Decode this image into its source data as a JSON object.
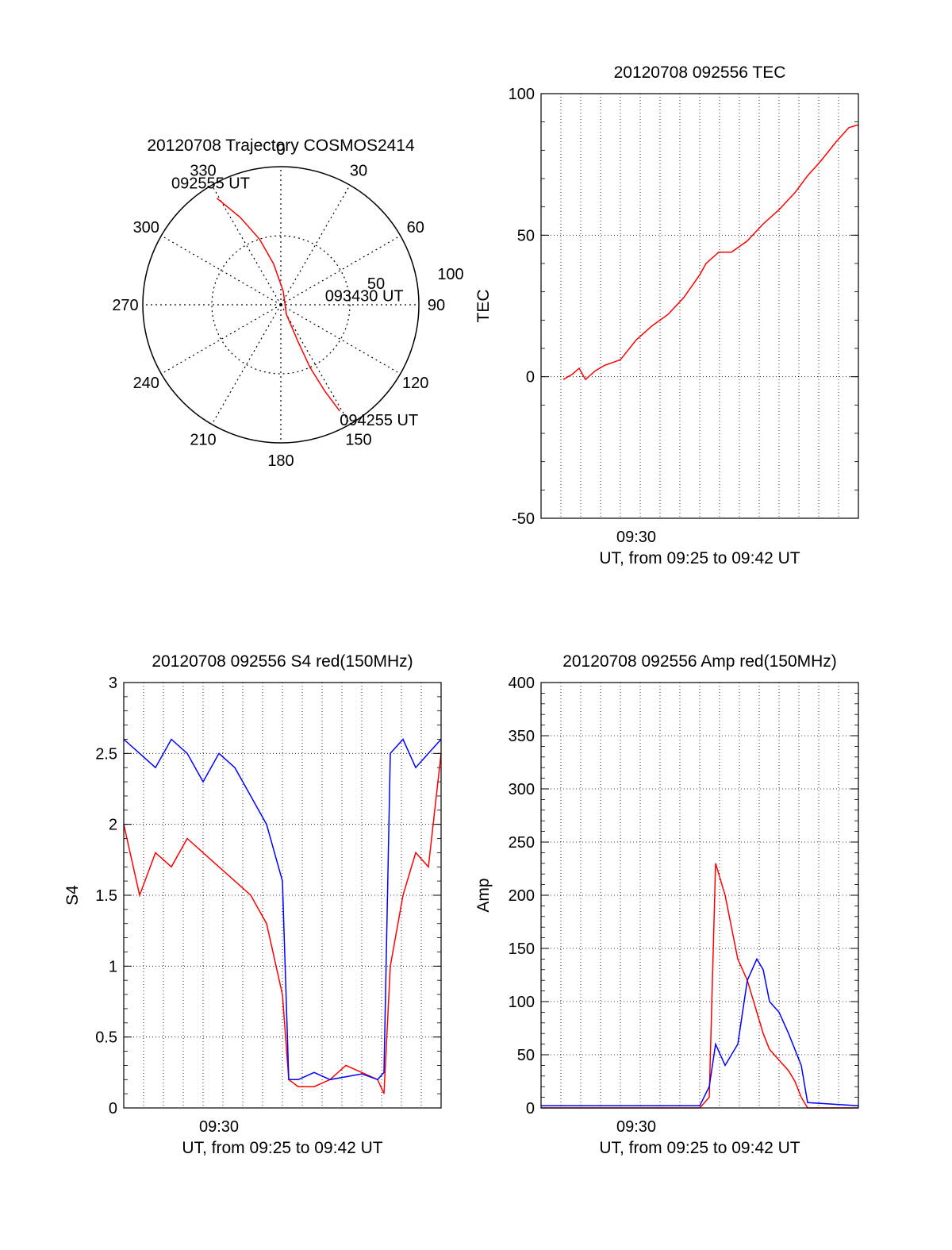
{
  "chart_data": [
    {
      "id": "polar",
      "type": "scatter",
      "title": "20120708 Trajectory COSMOS2414",
      "azimuth_labels": [
        "0",
        "30",
        "60",
        "90",
        "120",
        "150",
        "180",
        "210",
        "240",
        "270",
        "300",
        "330"
      ],
      "radius_labels": [
        "50",
        "100"
      ],
      "series": [
        {
          "color": "#ff0000",
          "points": [
            [
              329,
              90
            ],
            [
              335,
              70
            ],
            [
              342,
              50
            ],
            [
              350,
              30
            ],
            [
              10,
              10
            ],
            [
              150,
              8
            ],
            [
              155,
              30
            ],
            [
              155,
              50
            ],
            [
              153,
              70
            ],
            [
              151,
              88
            ]
          ]
        }
      ],
      "annotations": [
        {
          "text": "092555 UT",
          "az": 330,
          "r": 92
        },
        {
          "text": "093430 UT",
          "az": 80,
          "r": 22
        },
        {
          "text": "094255 UT",
          "az": 151,
          "r": 88
        }
      ]
    },
    {
      "id": "tec",
      "type": "line",
      "title": "20120708 092556 TEC",
      "ylabel": "TEC",
      "xlabel": "UT, from 09:25 to 09:42 UT",
      "x_tick_label": "09:30",
      "ylim": [
        -50,
        100
      ],
      "yticks": [
        "100",
        "50",
        "0",
        "-50"
      ],
      "series": [
        {
          "color": "#ff0000",
          "x": [
            0.07,
            0.1,
            0.12,
            0.14,
            0.17,
            0.2,
            0.25,
            0.3,
            0.35,
            0.4,
            0.45,
            0.5,
            0.52,
            0.56,
            0.6,
            0.65,
            0.7,
            0.75,
            0.8,
            0.84,
            0.88,
            0.93,
            0.97,
            1.0
          ],
          "y": [
            -1,
            1,
            3,
            -1,
            2,
            4,
            6,
            13,
            18,
            22,
            28,
            36,
            40,
            44,
            44,
            48,
            54,
            59,
            65,
            71,
            76,
            83,
            88,
            89
          ]
        }
      ]
    },
    {
      "id": "s4",
      "type": "line",
      "title": "20120708 092556 S4 red(150MHz)",
      "ylabel": "S4",
      "xlabel": "UT, from 09:25 to 09:42 UT",
      "x_tick_label": "09:30",
      "ylim": [
        0,
        3
      ],
      "yticks": [
        "3",
        "2.5",
        "2",
        "1.5",
        "1",
        "0.5",
        "0"
      ],
      "series": [
        {
          "color": "#ff0000",
          "x": [
            0.0,
            0.05,
            0.1,
            0.15,
            0.2,
            0.25,
            0.3,
            0.35,
            0.4,
            0.45,
            0.48,
            0.5,
            0.52,
            0.55,
            0.6,
            0.65,
            0.7,
            0.75,
            0.8,
            0.82,
            0.84,
            0.88,
            0.92,
            0.96,
            1.0
          ],
          "y": [
            2.0,
            1.5,
            1.8,
            1.7,
            1.9,
            1.8,
            1.7,
            1.6,
            1.5,
            1.3,
            1.0,
            0.8,
            0.2,
            0.15,
            0.15,
            0.2,
            0.3,
            0.25,
            0.2,
            0.1,
            1.0,
            1.5,
            1.8,
            1.7,
            2.5
          ]
        },
        {
          "color": "#0000ff",
          "x": [
            0.0,
            0.05,
            0.1,
            0.15,
            0.2,
            0.25,
            0.3,
            0.35,
            0.4,
            0.45,
            0.5,
            0.52,
            0.55,
            0.6,
            0.65,
            0.7,
            0.75,
            0.8,
            0.82,
            0.84,
            0.88,
            0.92,
            0.96,
            1.0
          ],
          "y": [
            2.6,
            2.5,
            2.4,
            2.6,
            2.5,
            2.3,
            2.5,
            2.4,
            2.2,
            2.0,
            1.6,
            0.2,
            0.2,
            0.25,
            0.2,
            0.22,
            0.24,
            0.2,
            0.25,
            2.5,
            2.6,
            2.4,
            2.5,
            2.6
          ]
        }
      ]
    },
    {
      "id": "amp",
      "type": "line",
      "title": "20120708 092556 Amp red(150MHz)",
      "ylabel": "Amp",
      "xlabel": "UT, from 09:25 to 09:42 UT",
      "x_tick_label": "09:30",
      "ylim": [
        0,
        400
      ],
      "yticks": [
        "400",
        "350",
        "300",
        "250",
        "200",
        "150",
        "100",
        "50",
        "0"
      ],
      "series": [
        {
          "color": "#ff0000",
          "x": [
            0.0,
            0.5,
            0.53,
            0.55,
            0.58,
            0.6,
            0.62,
            0.65,
            0.68,
            0.7,
            0.72,
            0.75,
            0.78,
            0.8,
            0.82,
            0.84,
            1.0
          ],
          "y": [
            0,
            0,
            10,
            230,
            200,
            170,
            140,
            120,
            90,
            70,
            55,
            45,
            35,
            25,
            10,
            0,
            0
          ]
        },
        {
          "color": "#0000ff",
          "x": [
            0.0,
            0.5,
            0.53,
            0.55,
            0.58,
            0.6,
            0.62,
            0.65,
            0.68,
            0.7,
            0.72,
            0.75,
            0.78,
            0.8,
            0.82,
            0.84,
            1.0
          ],
          "y": [
            2,
            2,
            20,
            60,
            40,
            50,
            60,
            120,
            140,
            130,
            100,
            90,
            70,
            55,
            40,
            5,
            2
          ]
        }
      ]
    }
  ]
}
